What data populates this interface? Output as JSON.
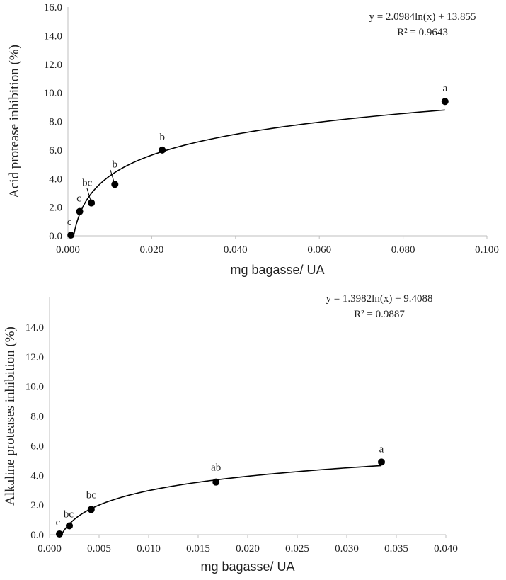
{
  "chart_data": [
    {
      "type": "scatter",
      "xlabel": "mg bagasse/ UA",
      "ylabel": "Acid protease inhibition (%)",
      "xlim": [
        0,
        0.1
      ],
      "ylim": [
        0,
        16
      ],
      "x_ticks": [
        "0.000",
        "0.020",
        "0.040",
        "0.060",
        "0.080",
        "0.100"
      ],
      "y_ticks": [
        "0.0",
        "2.0",
        "4.0",
        "6.0",
        "8.0",
        "10.0",
        "12.0",
        "14.0",
        "16.0"
      ],
      "trendline": {
        "type": "log",
        "a": 2.0984,
        "b": 13.855,
        "x_from": 0.00098,
        "x_to": 0.09
      },
      "equation": "y = 2.0984ln(x) + 13.855",
      "r_squared": "R² = 0.9643",
      "points": [
        {
          "x": 0.0007,
          "y": 0.05,
          "label": "c"
        },
        {
          "x": 0.0028,
          "y": 1.7,
          "label": "c"
        },
        {
          "x": 0.0056,
          "y": 2.3,
          "label": "bc"
        },
        {
          "x": 0.0112,
          "y": 3.6,
          "label": "b"
        },
        {
          "x": 0.0225,
          "y": 6.0,
          "label": "b"
        },
        {
          "x": 0.09,
          "y": 9.4,
          "label": "a"
        }
      ]
    },
    {
      "type": "scatter",
      "xlabel": "mg bagasse/ UA",
      "ylabel": "Alkaline proteases inhibition (%)",
      "xlim": [
        0,
        0.04
      ],
      "ylim": [
        0,
        16
      ],
      "x_ticks": [
        "0.000",
        "0.005",
        "0.010",
        "0.015",
        "0.020",
        "0.025",
        "0.030",
        "0.035",
        "0.040"
      ],
      "y_ticks": [
        "0.0",
        "2.0",
        "4.0",
        "6.0",
        "8.0",
        "10.0",
        "12.0",
        "14.0"
      ],
      "trendline": {
        "type": "log",
        "a": 1.3982,
        "b": 9.4088,
        "x_from": 0.0012,
        "x_to": 0.0335
      },
      "equation": "y = 1.3982ln(x) + 9.4088",
      "r_squared": "R² = 0.9887",
      "points": [
        {
          "x": 0.001,
          "y": 0.05,
          "label": "c"
        },
        {
          "x": 0.002,
          "y": 0.6,
          "label": "bc"
        },
        {
          "x": 0.0042,
          "y": 1.7,
          "label": "bc"
        },
        {
          "x": 0.0168,
          "y": 3.55,
          "label": "ab"
        },
        {
          "x": 0.0335,
          "y": 4.9,
          "label": "a"
        }
      ]
    }
  ]
}
